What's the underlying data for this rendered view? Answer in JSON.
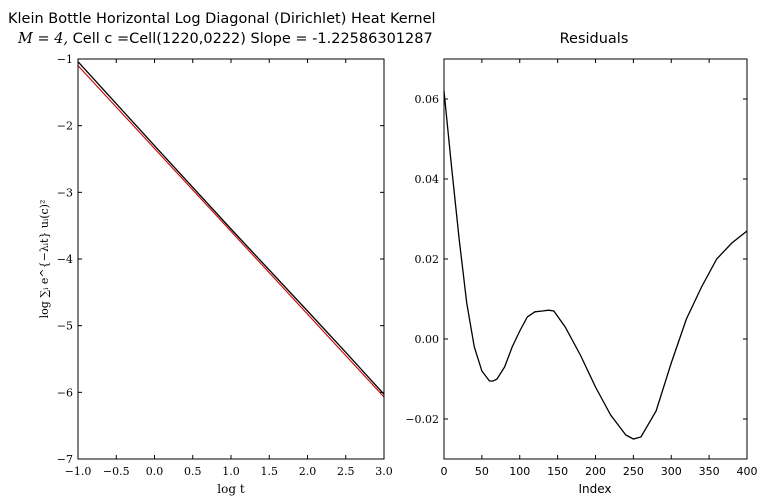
{
  "figure": {
    "title_line1": "Klein Bottle Horizontal Log Diagonal (Dirichlet) Heat Kernel",
    "title_line2_prefix": "M = 4,",
    "title_line2_rest": " Cell c =Cell(1220,0222) Slope = -1.22586301287"
  },
  "chart_data": [
    {
      "type": "line",
      "title": "",
      "xlabel": "log t",
      "ylabel": "log ∑ᵢ e^{−λᵢt} uᵢ(c)²",
      "xlim": [
        -1.0,
        3.0
      ],
      "ylim": [
        -7,
        -1
      ],
      "x_ticks": [
        -1.0,
        -0.5,
        0.0,
        0.5,
        1.0,
        1.5,
        2.0,
        2.5,
        3.0
      ],
      "x_tick_labels": [
        "−1.0",
        "−0.5",
        "0.0",
        "0.5",
        "1.0",
        "1.5",
        "2.0",
        "2.5",
        "3.0"
      ],
      "y_ticks": [
        -7,
        -6,
        -5,
        -4,
        -3,
        -2,
        -1
      ],
      "y_tick_labels": [
        "−7",
        "−6",
        "−5",
        "−4",
        "−3",
        "−2",
        "−1"
      ],
      "grid": false,
      "series": [
        {
          "color": "#cc0000",
          "x": [
            -1.0,
            3.0
          ],
          "y": [
            -1.1,
            -6.07
          ]
        },
        {
          "color": "#000000",
          "x": [
            -1.0,
            -0.5,
            0.0,
            1.0,
            2.0,
            2.5,
            3.0
          ],
          "y": [
            -1.04,
            -1.67,
            -2.3,
            -3.55,
            -4.78,
            -5.4,
            -6.03
          ]
        }
      ]
    },
    {
      "type": "line",
      "title": "Residuals",
      "xlabel": "Index",
      "ylabel": "",
      "xlim": [
        0,
        400
      ],
      "ylim": [
        -0.03,
        0.07
      ],
      "x_ticks": [
        0,
        50,
        100,
        150,
        200,
        250,
        300,
        350,
        400
      ],
      "x_tick_labels": [
        "0",
        "50",
        "100",
        "150",
        "200",
        "250",
        "300",
        "350",
        "400"
      ],
      "y_ticks": [
        -0.02,
        0.0,
        0.02,
        0.04,
        0.06
      ],
      "y_tick_labels": [
        "−0.02",
        "0.00",
        "0.02",
        "0.04",
        "0.06"
      ],
      "grid": false,
      "series": [
        {
          "color": "#000000",
          "x": [
            0,
            10,
            20,
            30,
            40,
            50,
            60,
            65,
            70,
            80,
            90,
            100,
            110,
            120,
            130,
            138,
            145,
            160,
            180,
            200,
            220,
            240,
            250,
            260,
            280,
            300,
            320,
            340,
            360,
            380,
            400
          ],
          "y": [
            0.062,
            0.043,
            0.025,
            0.009,
            -0.002,
            -0.008,
            -0.0105,
            -0.0105,
            -0.01,
            -0.007,
            -0.002,
            0.002,
            0.0055,
            0.0068,
            0.007,
            0.0072,
            0.007,
            0.003,
            -0.004,
            -0.012,
            -0.019,
            -0.024,
            -0.025,
            -0.0245,
            -0.018,
            -0.006,
            0.005,
            0.013,
            0.02,
            0.024,
            0.027
          ]
        }
      ]
    }
  ]
}
